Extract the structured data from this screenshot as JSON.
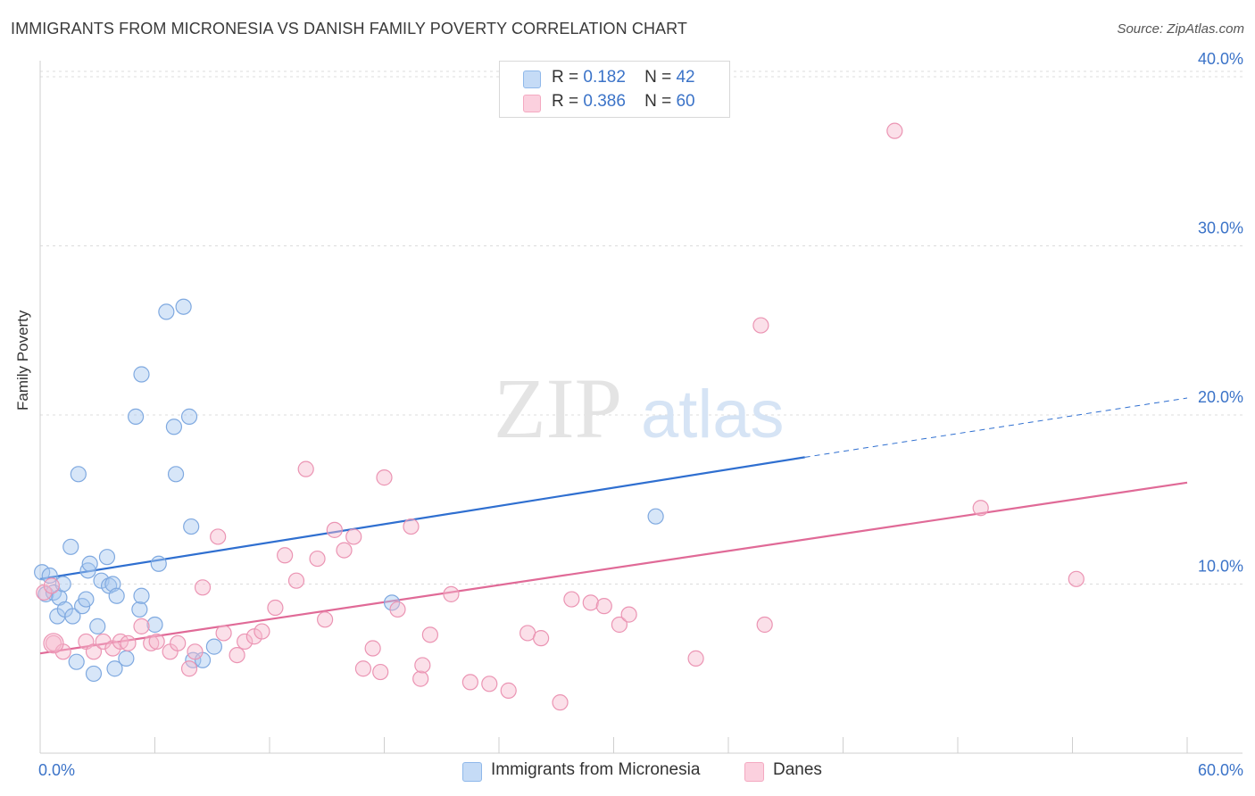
{
  "title": "IMMIGRANTS FROM MICRONESIA VS DANISH FAMILY POVERTY CORRELATION CHART",
  "source": "Source: ZipAtlas.com",
  "watermark": {
    "zip": "ZIP",
    "atlas": "atlas"
  },
  "colors": {
    "blue": "#8fb8ea",
    "blue_line": "#2f6fd0",
    "pink": "#f4a9c1",
    "pink_line": "#e06a97",
    "axis_text": "#3b73c8"
  },
  "legend": {
    "series1": {
      "r_label": "R =",
      "r_value": "0.182",
      "n_label": "N =",
      "n_value": "42"
    },
    "series2": {
      "r_label": "R =",
      "r_value": "0.386",
      "n_label": "N =",
      "n_value": "60"
    }
  },
  "bottom_legend": {
    "series1": "Immigrants from Micronesia",
    "series2": "Danes"
  },
  "chart_data": {
    "type": "scatter",
    "title": "IMMIGRANTS FROM MICRONESIA VS DANISH FAMILY POVERTY CORRELATION CHART",
    "xlabel": "",
    "ylabel": "Family Poverty",
    "xlim": [
      0,
      60
    ],
    "ylim": [
      0,
      40
    ],
    "x_tick_labels": [
      "0.0%",
      "60.0%"
    ],
    "y_ticks": [
      {
        "value": 10,
        "label": "10.0%"
      },
      {
        "value": 20,
        "label": "20.0%"
      },
      {
        "value": 30,
        "label": "30.0%"
      },
      {
        "value": 40,
        "label": "40.0%"
      }
    ],
    "series": [
      {
        "name": "Immigrants from Micronesia",
        "color": "#8fb8ea",
        "trend": {
          "x0": 0,
          "y0": 10.3,
          "x1": 40,
          "y1": 17.5,
          "dash_to_x": 60,
          "dash_to_y": 21.0
        },
        "points": [
          [
            0.1,
            10.7
          ],
          [
            0.3,
            9.4
          ],
          [
            0.5,
            10.5
          ],
          [
            0.7,
            9.5
          ],
          [
            0.9,
            8.1
          ],
          [
            1.0,
            9.2
          ],
          [
            1.2,
            10.0
          ],
          [
            1.3,
            8.5
          ],
          [
            1.6,
            12.2
          ],
          [
            1.7,
            8.1
          ],
          [
            1.9,
            5.4
          ],
          [
            2.0,
            16.5
          ],
          [
            2.2,
            8.7
          ],
          [
            2.4,
            9.1
          ],
          [
            2.5,
            10.8
          ],
          [
            2.6,
            11.2
          ],
          [
            2.8,
            4.7
          ],
          [
            3.0,
            7.5
          ],
          [
            3.2,
            10.2
          ],
          [
            3.5,
            11.6
          ],
          [
            3.6,
            9.9
          ],
          [
            3.8,
            10.0
          ],
          [
            3.9,
            5.0
          ],
          [
            4.0,
            9.3
          ],
          [
            4.5,
            5.6
          ],
          [
            5.0,
            19.9
          ],
          [
            5.2,
            8.5
          ],
          [
            5.3,
            9.3
          ],
          [
            5.3,
            22.4
          ],
          [
            6.0,
            7.6
          ],
          [
            6.2,
            11.2
          ],
          [
            6.6,
            26.1
          ],
          [
            7.0,
            19.3
          ],
          [
            7.1,
            16.5
          ],
          [
            7.5,
            26.4
          ],
          [
            7.8,
            19.9
          ],
          [
            7.9,
            13.4
          ],
          [
            8.0,
            5.5
          ],
          [
            8.5,
            5.5
          ],
          [
            9.1,
            6.3
          ],
          [
            18.4,
            8.9
          ],
          [
            32.2,
            14.0
          ]
        ]
      },
      {
        "name": "Danes",
        "color": "#f4a9c1",
        "trend": {
          "x0": 0,
          "y0": 5.9,
          "x1": 60,
          "y1": 16.0
        },
        "points": [
          [
            0.2,
            9.5
          ],
          [
            0.6,
            9.9
          ],
          [
            0.7,
            6.5
          ],
          [
            1.2,
            6.0
          ],
          [
            2.4,
            6.6
          ],
          [
            2.8,
            6.0
          ],
          [
            3.3,
            6.6
          ],
          [
            3.8,
            6.2
          ],
          [
            4.2,
            6.6
          ],
          [
            4.6,
            6.5
          ],
          [
            5.3,
            7.5
          ],
          [
            5.8,
            6.5
          ],
          [
            6.1,
            6.6
          ],
          [
            6.8,
            6.0
          ],
          [
            7.2,
            6.5
          ],
          [
            7.8,
            5.0
          ],
          [
            8.1,
            6.0
          ],
          [
            8.5,
            9.8
          ],
          [
            9.3,
            12.8
          ],
          [
            9.6,
            7.1
          ],
          [
            10.3,
            5.8
          ],
          [
            10.7,
            6.6
          ],
          [
            11.2,
            6.9
          ],
          [
            11.6,
            7.2
          ],
          [
            12.3,
            8.6
          ],
          [
            12.8,
            11.7
          ],
          [
            13.4,
            10.2
          ],
          [
            13.9,
            16.8
          ],
          [
            14.5,
            11.5
          ],
          [
            14.9,
            7.9
          ],
          [
            15.4,
            13.2
          ],
          [
            15.9,
            12.0
          ],
          [
            16.4,
            12.8
          ],
          [
            16.9,
            5.0
          ],
          [
            17.4,
            6.2
          ],
          [
            17.8,
            4.8
          ],
          [
            18.0,
            16.3
          ],
          [
            18.7,
            8.5
          ],
          [
            19.4,
            13.4
          ],
          [
            19.9,
            4.4
          ],
          [
            20.0,
            5.2
          ],
          [
            20.4,
            7.0
          ],
          [
            21.5,
            9.4
          ],
          [
            22.5,
            4.2
          ],
          [
            23.5,
            4.1
          ],
          [
            24.5,
            3.7
          ],
          [
            25.5,
            7.1
          ],
          [
            26.2,
            6.8
          ],
          [
            27.2,
            3.0
          ],
          [
            27.8,
            9.1
          ],
          [
            28.8,
            8.9
          ],
          [
            29.5,
            8.7
          ],
          [
            30.3,
            7.6
          ],
          [
            30.8,
            8.2
          ],
          [
            34.3,
            5.6
          ],
          [
            37.7,
            25.3
          ],
          [
            37.9,
            7.6
          ],
          [
            44.7,
            36.8
          ],
          [
            49.2,
            14.5
          ],
          [
            54.2,
            10.3
          ]
        ]
      }
    ]
  }
}
